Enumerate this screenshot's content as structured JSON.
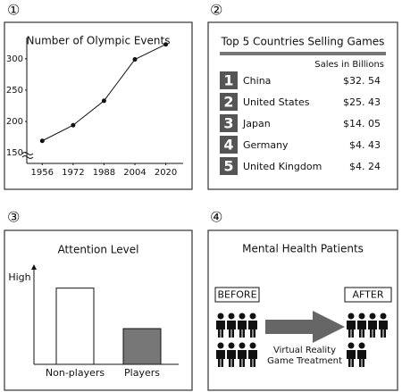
{
  "panel_labels": [
    "①",
    "②",
    "③",
    "④"
  ],
  "chart_data": [
    {
      "type": "line",
      "title": "Number of Olympic Events",
      "x": [
        1956,
        1972,
        1988,
        2004,
        2020
      ],
      "values": [
        169,
        194,
        233,
        299,
        323
      ],
      "color": "#111",
      "xlim": [
        1948,
        2029
      ],
      "xticks": [
        1956,
        1972,
        1988,
        2004,
        2020
      ],
      "ylim": [
        133,
        334
      ],
      "yticks": [
        150,
        200,
        250,
        300
      ]
    },
    {
      "type": "bar",
      "title": "Attention Level",
      "ylabel": "High",
      "categories": [
        "Non-players",
        "Players"
      ],
      "values": [
        7.9,
        3.7
      ],
      "colors": [
        "#ffffff",
        "#777777"
      ],
      "ylim": [
        0,
        10
      ]
    }
  ],
  "table": {
    "title": "Top 5 Countries Selling Games",
    "column_header": "Sales in Billions",
    "rows": [
      [
        "1",
        "China",
        "$32. 54"
      ],
      [
        "2",
        "United States",
        "$25. 43"
      ],
      [
        "3",
        "Japan",
        "$14. 05"
      ],
      [
        "4",
        "Germany",
        "$4. 43"
      ],
      [
        "5",
        "United Kingdom",
        "$4. 24"
      ]
    ]
  },
  "diagram": {
    "title": "Mental Health Patients",
    "before": "BEFORE",
    "after": "AFTER",
    "arrow_label": [
      "Virtual Reality",
      "Game Treatment"
    ]
  }
}
